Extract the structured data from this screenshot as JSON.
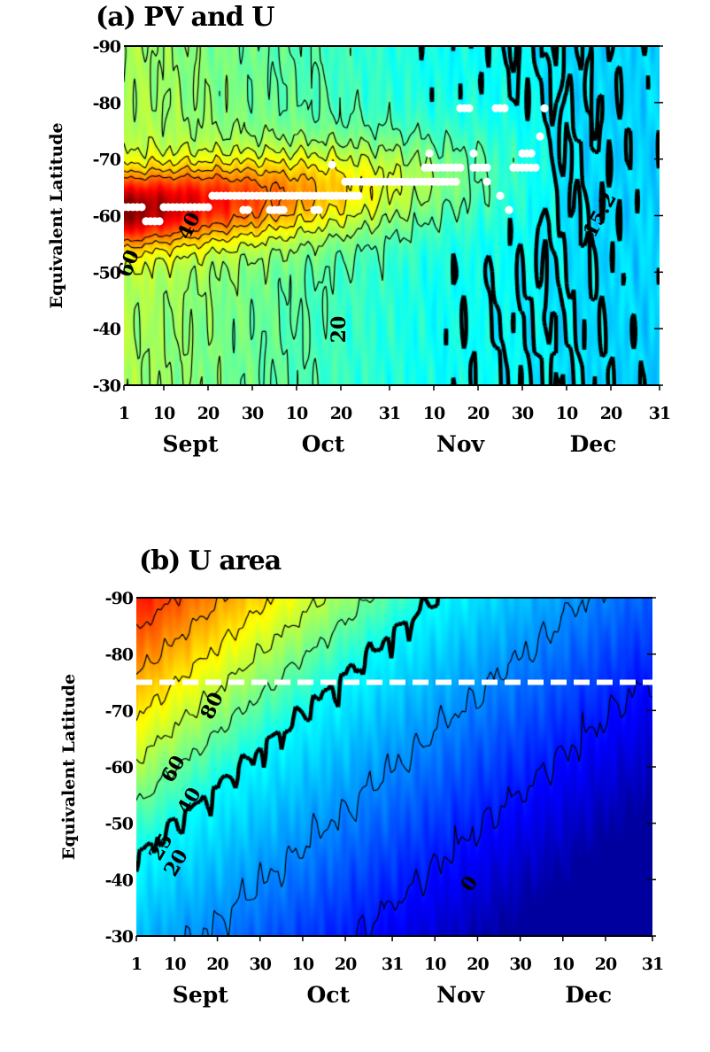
{
  "chart_data": [
    {
      "type": "heatmap",
      "title": "(a) PV and U",
      "ylabel": "Equivalent Latitude",
      "xlabel": "",
      "ylim": [
        -90,
        -30
      ],
      "y_ticks": [
        "-90",
        "-80",
        "-70",
        "-60",
        "-50",
        "-40",
        "-30"
      ],
      "x_ticks": [
        "1",
        "10",
        "20",
        "30",
        "10",
        "20",
        "31",
        "10",
        "20",
        "30",
        "10",
        "20",
        "31"
      ],
      "x_tick_dates": [
        "09-01",
        "09-10",
        "09-20",
        "09-30",
        "10-10",
        "10-20",
        "10-31",
        "11-10",
        "11-20",
        "11-30",
        "12-10",
        "12-20",
        "12-31"
      ],
      "months": [
        "Sept",
        "Oct",
        "Nov",
        "Dec"
      ],
      "colormap": "jet",
      "contour_labels": [
        "60",
        "40",
        "20",
        "15.2"
      ],
      "highlight_contour": "15.2",
      "marker_color": "#ffffff",
      "white_dot_segments": [
        {
          "from": "09-01",
          "to": "09-05",
          "lat": -61.5
        },
        {
          "from": "09-06",
          "to": "09-09",
          "lat": -59
        },
        {
          "from": "09-10",
          "to": "09-20",
          "lat": -61.5
        },
        {
          "from": "09-21",
          "to": "10-07",
          "lat": -63.5
        },
        {
          "from": "09-28",
          "to": "09-29",
          "lat": -61
        },
        {
          "from": "10-04",
          "to": "10-07",
          "lat": -61
        },
        {
          "from": "10-14",
          "to": "10-15",
          "lat": -61
        },
        {
          "from": "10-07",
          "to": "10-24",
          "lat": -63.5
        },
        {
          "from": "10-21",
          "to": "11-15",
          "lat": -66
        },
        {
          "from": "10-18",
          "to": "10-18",
          "lat": -69
        },
        {
          "from": "11-08",
          "to": "11-16",
          "lat": -68.5
        },
        {
          "from": "11-19",
          "to": "11-22",
          "lat": -68.5
        },
        {
          "from": "11-28",
          "to": "12-03",
          "lat": -68.5
        },
        {
          "from": "11-16",
          "to": "11-18",
          "lat": -79
        },
        {
          "from": "11-24",
          "to": "11-26",
          "lat": -79
        },
        {
          "from": "12-05",
          "to": "12-05",
          "lat": -79
        },
        {
          "from": "12-04",
          "to": "12-04",
          "lat": -74
        },
        {
          "from": "11-09",
          "to": "11-09",
          "lat": -71
        },
        {
          "from": "11-19",
          "to": "11-19",
          "lat": -71
        },
        {
          "from": "11-30",
          "to": "12-02",
          "lat": -71
        },
        {
          "from": "11-22",
          "to": "11-22",
          "lat": -66
        },
        {
          "from": "11-25",
          "to": "11-25",
          "lat": -63.5
        },
        {
          "from": "11-27",
          "to": "11-27",
          "lat": -61
        }
      ]
    },
    {
      "type": "heatmap",
      "title": "(b) U area",
      "ylabel": "Equivalent Latitude",
      "xlabel": "",
      "ylim": [
        -90,
        -30
      ],
      "y_ticks": [
        "-90",
        "-80",
        "-70",
        "-60",
        "-50",
        "-40",
        "-30"
      ],
      "x_ticks": [
        "1",
        "10",
        "20",
        "30",
        "10",
        "20",
        "31",
        "10",
        "20",
        "30",
        "10",
        "20",
        "31"
      ],
      "x_tick_dates": [
        "09-01",
        "09-10",
        "09-20",
        "09-30",
        "10-10",
        "10-20",
        "10-31",
        "11-10",
        "11-20",
        "11-30",
        "12-10",
        "12-20",
        "12-31"
      ],
      "months": [
        "Sept",
        "Oct",
        "Nov",
        "Dec"
      ],
      "colormap": "jet",
      "contour_labels": [
        "80",
        "60",
        "40",
        "25",
        "20",
        "0"
      ],
      "highlight_contour": "25",
      "dashed_line": {
        "lat": -75,
        "color": "#ffffff"
      }
    }
  ]
}
